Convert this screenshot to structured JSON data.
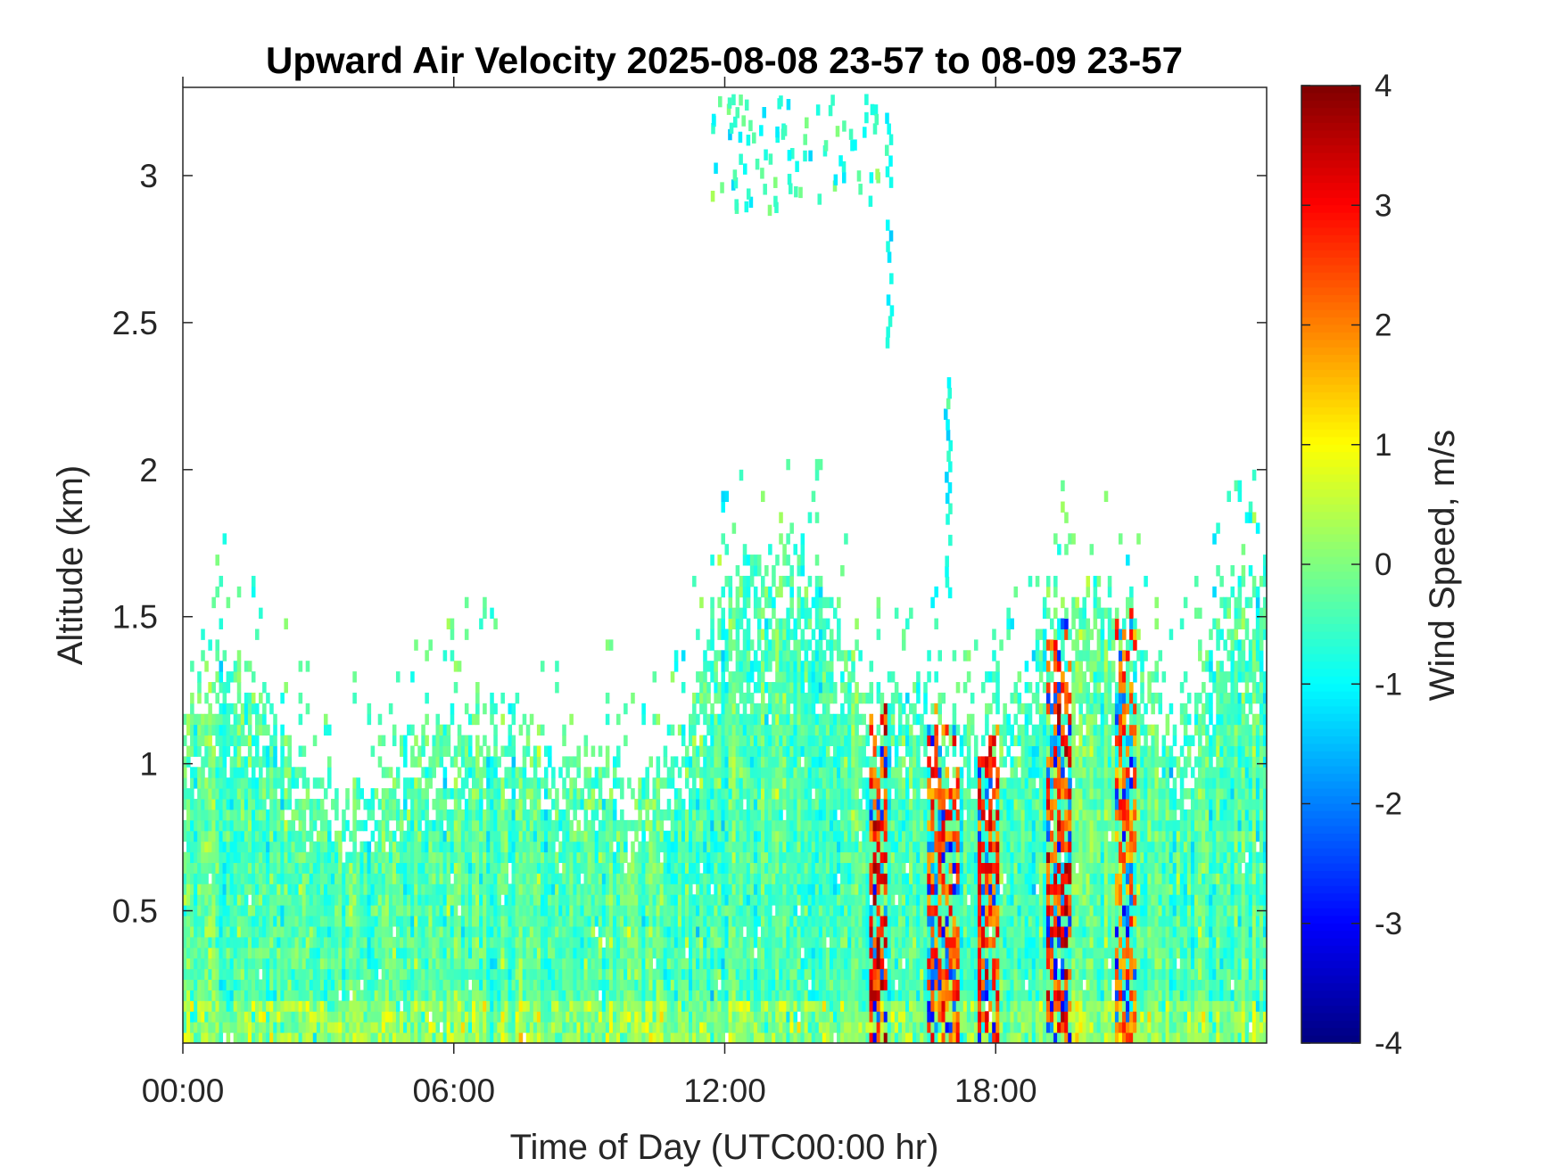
{
  "chart_data": {
    "type": "heatmap",
    "title": "Upward Air Velocity 2025-08-08 23-57 to 08-09 23-57",
    "xlabel": "Time of Day (UTC00:00 hr)",
    "ylabel": "Altitude (km)",
    "colorbar_label": "Wind Speed, m/s",
    "colormap": "jet",
    "x_range_hours": [
      0,
      24
    ],
    "y_range_km": [
      0.05,
      3.3
    ],
    "color_range": [
      -4,
      4
    ],
    "x_ticks": [
      {
        "value": 0,
        "label": "00:00"
      },
      {
        "value": 6,
        "label": "06:00"
      },
      {
        "value": 12,
        "label": "12:00"
      },
      {
        "value": 18,
        "label": "18:00"
      }
    ],
    "y_ticks": [
      {
        "value": 0.5,
        "label": "0.5"
      },
      {
        "value": 1,
        "label": "1"
      },
      {
        "value": 1.5,
        "label": "1.5"
      },
      {
        "value": 2,
        "label": "2"
      },
      {
        "value": 2.5,
        "label": "2.5"
      },
      {
        "value": 3,
        "label": "3"
      }
    ],
    "colorbar_ticks": [
      {
        "value": 4,
        "label": "4"
      },
      {
        "value": 3,
        "label": "3"
      },
      {
        "value": 2,
        "label": "2"
      },
      {
        "value": 1,
        "label": "1"
      },
      {
        "value": 0,
        "label": "0"
      },
      {
        "value": -1,
        "label": "-1"
      },
      {
        "value": -2,
        "label": "-2"
      },
      {
        "value": -3,
        "label": "-3"
      },
      {
        "value": -4,
        "label": "-4"
      }
    ],
    "data_top_km_by_hour": [
      {
        "hour": 0,
        "top": 1.2
      },
      {
        "hour": 1,
        "top": 1.4
      },
      {
        "hour": 2,
        "top": 1.2
      },
      {
        "hour": 3,
        "top": 0.95
      },
      {
        "hour": 4,
        "top": 0.9
      },
      {
        "hour": 5,
        "top": 1.1
      },
      {
        "hour": 6,
        "top": 1.15
      },
      {
        "hour": 7,
        "top": 1.2
      },
      {
        "hour": 8,
        "top": 1.1
      },
      {
        "hour": 9,
        "top": 1.05
      },
      {
        "hour": 10,
        "top": 0.95
      },
      {
        "hour": 11,
        "top": 1.05
      },
      {
        "hour": 12,
        "top": 1.7
      },
      {
        "hour": 13,
        "top": 1.75
      },
      {
        "hour": 14,
        "top": 1.7
      },
      {
        "hour": 15,
        "top": 1.3
      },
      {
        "hour": 16,
        "top": 1.25
      },
      {
        "hour": 17,
        "top": 1.2
      },
      {
        "hour": 18,
        "top": 1.15
      },
      {
        "hour": 19,
        "top": 1.5
      },
      {
        "hour": 20,
        "top": 1.6
      },
      {
        "hour": 21,
        "top": 1.55
      },
      {
        "hour": 22,
        "top": 1.15
      },
      {
        "hour": 23,
        "top": 1.6
      },
      {
        "hour": 24,
        "top": 1.7
      }
    ],
    "strong_updraft_bands_hours": [
      {
        "start": 15.2,
        "end": 15.6,
        "peak_ms": 3.8
      },
      {
        "start": 16.5,
        "end": 17.2,
        "peak_ms": 3.3
      },
      {
        "start": 17.6,
        "end": 18.1,
        "peak_ms": 3.5
      },
      {
        "start": 19.1,
        "end": 19.7,
        "peak_ms": 3.8
      },
      {
        "start": 20.6,
        "end": 21.1,
        "peak_ms": 3.0
      }
    ],
    "high_altitude_features": [
      {
        "hour": 15.6,
        "bottom_km": 2.45,
        "top_km": 3.25
      },
      {
        "hour": 16.9,
        "bottom_km": 1.6,
        "top_km": 2.35
      }
    ]
  }
}
